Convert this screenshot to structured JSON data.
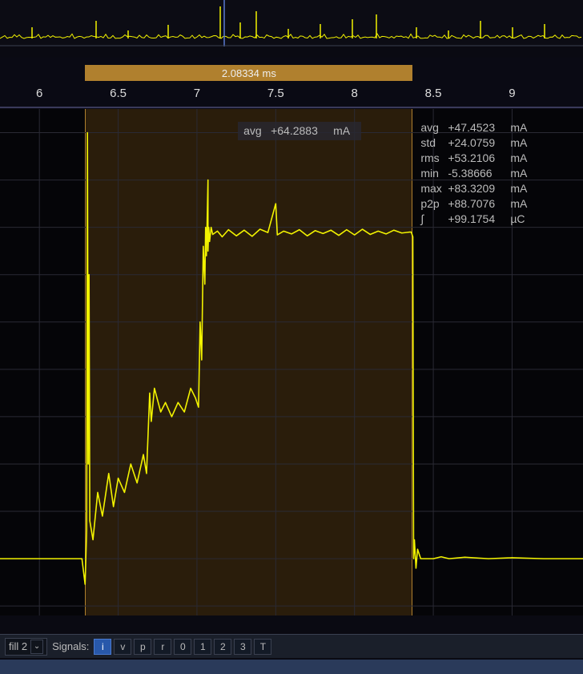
{
  "colors": {
    "bg": "#0a0a12",
    "plot_bg": "#050508",
    "grid": "#2a2a34",
    "axis": "#3a3a5a",
    "trace": "#f2f200",
    "selection_bar": "#b0802e",
    "selection_shade": "rgba(120,80,20,0.32)",
    "statbox_bg": "rgba(40,40,50,0.78)",
    "toolbar_bg": "#1a1f2a",
    "btn_bg": "#131a26",
    "btn_active_bg": "#2858aa",
    "bottom_strip": "#2a3a5a"
  },
  "overview": {
    "baseline_y": 48,
    "noise_amp": 6,
    "spikes": [
      {
        "x": 40,
        "h": 14
      },
      {
        "x": 120,
        "h": 22
      },
      {
        "x": 160,
        "h": 10
      },
      {
        "x": 210,
        "h": 17
      },
      {
        "x": 275,
        "h": 40
      },
      {
        "x": 300,
        "h": 20
      },
      {
        "x": 320,
        "h": 34
      },
      {
        "x": 360,
        "h": 12
      },
      {
        "x": 400,
        "h": 18
      },
      {
        "x": 440,
        "h": 24
      },
      {
        "x": 470,
        "h": 30
      },
      {
        "x": 520,
        "h": 14
      },
      {
        "x": 560,
        "h": 10
      },
      {
        "x": 600,
        "h": 22
      },
      {
        "x": 640,
        "h": 14
      },
      {
        "x": 680,
        "h": 18
      }
    ],
    "marker_x": 280,
    "marker_color": "#5a7ad0"
  },
  "axis": {
    "xmin": 5.75,
    "xmax": 9.45,
    "ticks": [
      {
        "v": 6,
        "label": "6"
      },
      {
        "v": 6.5,
        "label": "6.5"
      },
      {
        "v": 7,
        "label": "7"
      },
      {
        "v": 7.5,
        "label": "7.5"
      },
      {
        "v": 8,
        "label": "8"
      },
      {
        "v": 8.5,
        "label": "8.5"
      },
      {
        "v": 9,
        "label": "9"
      }
    ]
  },
  "selection": {
    "start": 6.29,
    "end": 8.37,
    "label": "2.08334 ms"
  },
  "chart": {
    "type": "line",
    "ymin": -12,
    "ymax": 95,
    "h_gridlines": [
      -10,
      0,
      10,
      20,
      30,
      40,
      50,
      60,
      70,
      80,
      90
    ],
    "v_gridlines": [
      6,
      6.5,
      7,
      7.5,
      8,
      8.5,
      9
    ],
    "line_color": "#f2f200",
    "line_width": 1.6,
    "series": [
      [
        5.75,
        0
      ],
      [
        6.2,
        0
      ],
      [
        6.27,
        0
      ],
      [
        6.29,
        -5.4
      ],
      [
        6.3,
        6
      ],
      [
        6.305,
        90
      ],
      [
        6.31,
        20
      ],
      [
        6.315,
        60
      ],
      [
        6.32,
        8
      ],
      [
        6.34,
        4
      ],
      [
        6.37,
        14
      ],
      [
        6.4,
        9
      ],
      [
        6.44,
        18
      ],
      [
        6.47,
        11
      ],
      [
        6.5,
        17
      ],
      [
        6.54,
        14
      ],
      [
        6.58,
        20
      ],
      [
        6.62,
        16
      ],
      [
        6.66,
        22
      ],
      [
        6.68,
        18
      ],
      [
        6.7,
        35
      ],
      [
        6.71,
        29
      ],
      [
        6.73,
        36
      ],
      [
        6.77,
        31
      ],
      [
        6.8,
        33
      ],
      [
        6.84,
        30
      ],
      [
        6.88,
        33
      ],
      [
        6.92,
        31
      ],
      [
        6.96,
        36
      ],
      [
        6.99,
        34
      ],
      [
        7.0,
        33
      ],
      [
        7.01,
        32
      ],
      [
        7.02,
        50
      ],
      [
        7.03,
        42
      ],
      [
        7.04,
        66
      ],
      [
        7.05,
        58
      ],
      [
        7.055,
        70
      ],
      [
        7.06,
        64
      ],
      [
        7.07,
        80
      ],
      [
        7.07,
        65
      ],
      [
        7.075,
        70
      ],
      [
        7.08,
        67
      ],
      [
        7.09,
        70
      ],
      [
        7.1,
        68.5
      ],
      [
        7.13,
        69.2
      ],
      [
        7.16,
        68.0
      ],
      [
        7.2,
        69.5
      ],
      [
        7.25,
        68.2
      ],
      [
        7.3,
        69.4
      ],
      [
        7.35,
        68.1
      ],
      [
        7.4,
        69.6
      ],
      [
        7.45,
        68.9
      ],
      [
        7.5,
        75
      ],
      [
        7.51,
        68.4
      ],
      [
        7.55,
        69.2
      ],
      [
        7.6,
        68.6
      ],
      [
        7.65,
        69.5
      ],
      [
        7.7,
        68.2
      ],
      [
        7.75,
        69.3
      ],
      [
        7.8,
        68.7
      ],
      [
        7.85,
        69.4
      ],
      [
        7.9,
        68.3
      ],
      [
        7.95,
        69.5
      ],
      [
        8.0,
        68.4
      ],
      [
        8.05,
        69.6
      ],
      [
        8.1,
        68.5
      ],
      [
        8.15,
        69.2
      ],
      [
        8.2,
        68.6
      ],
      [
        8.25,
        69.4
      ],
      [
        8.3,
        68.8
      ],
      [
        8.35,
        69.0
      ],
      [
        8.36,
        69
      ],
      [
        8.37,
        68
      ],
      [
        8.375,
        0
      ],
      [
        8.38,
        4
      ],
      [
        8.39,
        -2
      ],
      [
        8.4,
        2
      ],
      [
        8.42,
        0
      ],
      [
        8.5,
        0
      ],
      [
        8.55,
        0.4
      ],
      [
        8.6,
        0
      ],
      [
        8.7,
        0.3
      ],
      [
        8.85,
        0
      ],
      [
        9.0,
        0.2
      ],
      [
        9.2,
        0
      ],
      [
        9.45,
        0
      ]
    ]
  },
  "stats_selection": {
    "rows": [
      {
        "label": "avg",
        "value": "+64.2883",
        "unit": "mA"
      }
    ]
  },
  "stats_cursor": {
    "rows": [
      {
        "label": "avg",
        "value": "+47.4523",
        "unit": "mA"
      },
      {
        "label": "std",
        "value": "+24.0759",
        "unit": "mA"
      },
      {
        "label": "rms",
        "value": "+53.2106",
        "unit": "mA"
      },
      {
        "label": "min",
        "value": "-5.38666",
        "unit": "mA"
      },
      {
        "label": "max",
        "value": "+83.3209",
        "unit": "mA"
      },
      {
        "label": "p2p",
        "value": "+88.7076",
        "unit": "mA"
      },
      {
        "label": "∫",
        "value": "+99.1754",
        "unit": "µC"
      }
    ]
  },
  "toolbar": {
    "fill_label": "fill 2",
    "signals_label": "Signals:",
    "buttons": [
      {
        "label": "i",
        "active": true
      },
      {
        "label": "v",
        "active": false
      },
      {
        "label": "p",
        "active": false
      },
      {
        "label": "r",
        "active": false
      },
      {
        "label": "0",
        "active": false
      },
      {
        "label": "1",
        "active": false
      },
      {
        "label": "2",
        "active": false
      },
      {
        "label": "3",
        "active": false
      },
      {
        "label": "T",
        "active": false
      }
    ]
  }
}
